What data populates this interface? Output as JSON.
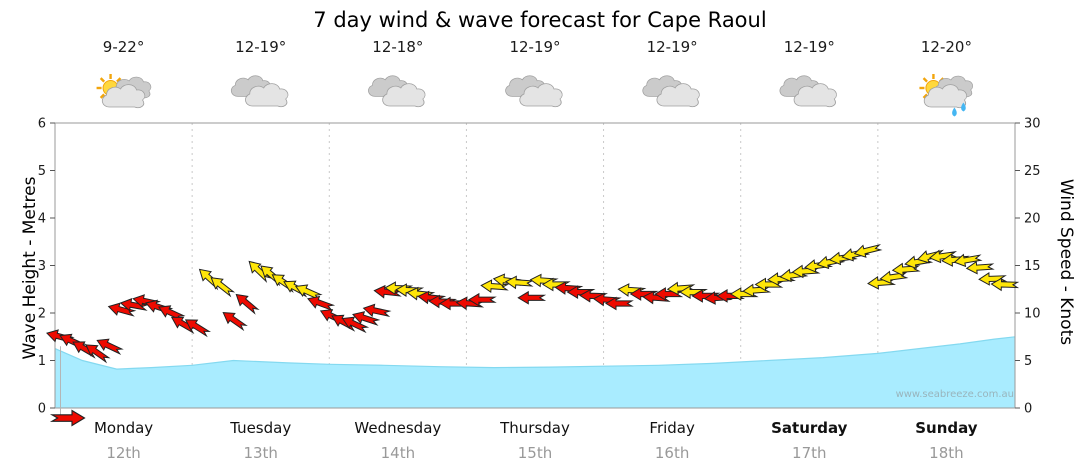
{
  "title": "7 day wind & wave forecast for Cape Raoul",
  "watermark": "www.seabreeze.com.au",
  "axes": {
    "left_label": "Wave Height - Metres",
    "right_label": "Wind Speed - Knots",
    "left_ticks": [
      0,
      1,
      2,
      3,
      4,
      5,
      6
    ],
    "right_ticks": [
      0,
      5,
      10,
      15,
      20,
      25,
      30
    ]
  },
  "days": [
    {
      "name": "Monday",
      "date": "12th",
      "temp": "9-22°",
      "icon": "sun-cloud",
      "bold": false
    },
    {
      "name": "Tuesday",
      "date": "13th",
      "temp": "12-19°",
      "icon": "clouds",
      "bold": false
    },
    {
      "name": "Wednesday",
      "date": "14th",
      "temp": "12-18°",
      "icon": "clouds",
      "bold": false
    },
    {
      "name": "Thursday",
      "date": "15th",
      "temp": "12-19°",
      "icon": "clouds",
      "bold": false
    },
    {
      "name": "Friday",
      "date": "16th",
      "temp": "12-19°",
      "icon": "clouds",
      "bold": false
    },
    {
      "name": "Saturday",
      "date": "17th",
      "temp": "12-19°",
      "icon": "clouds",
      "bold": true
    },
    {
      "name": "Sunday",
      "date": "18th",
      "temp": "12-20°",
      "icon": "sun-shower",
      "bold": true
    }
  ],
  "chart_data": {
    "type": "area",
    "subtype": "wind-wave-forecast (wave-height area + wind-speed arrows)",
    "categories": [
      "Monday 12th",
      "Tuesday 13th",
      "Wednesday 14th",
      "Thursday 15th",
      "Friday 16th",
      "Saturday 17th",
      "Sunday 18th"
    ],
    "ylim_wave": [
      0,
      6
    ],
    "ylim_wind": [
      0,
      30
    ],
    "colors": {
      "red": "#ee0a00",
      "yellow": "#ffe608",
      "wave": "#a9ecff",
      "wave_edge": "#84d9f0"
    },
    "wave_series": {
      "name": "Wave Height (m, left axis)",
      "x_days": [
        0,
        0.2,
        0.45,
        0.7,
        1.0,
        1.3,
        1.7,
        2.0,
        2.4,
        2.8,
        3.2,
        3.6,
        4.0,
        4.4,
        4.8,
        5.2,
        5.6,
        6.0,
        6.3,
        6.6,
        6.85,
        7.0
      ],
      "metres": [
        1.25,
        1.0,
        0.82,
        0.85,
        0.9,
        1.0,
        0.95,
        0.92,
        0.9,
        0.87,
        0.85,
        0.86,
        0.88,
        0.9,
        0.94,
        1.0,
        1.06,
        1.15,
        1.25,
        1.35,
        1.45,
        1.5
      ]
    },
    "arrow_format": [
      "day_offset",
      "knots",
      "color",
      "direction_deg_0_points_right"
    ],
    "wind_arrows": [
      [
        0.04,
        7.5,
        "red",
        195
      ],
      [
        0.13,
        7.0,
        "red",
        205
      ],
      [
        0.22,
        6.2,
        "red",
        210
      ],
      [
        0.31,
        5.8,
        "red",
        215
      ],
      [
        0.4,
        6.5,
        "red",
        205
      ],
      [
        0.49,
        10.3,
        "red",
        195
      ],
      [
        0.58,
        10.8,
        "red",
        190
      ],
      [
        0.67,
        11.2,
        "red",
        192
      ],
      [
        0.76,
        10.6,
        "red",
        198
      ],
      [
        0.85,
        10.0,
        "red",
        205
      ],
      [
        0.94,
        8.8,
        "red",
        210
      ],
      [
        1.04,
        8.5,
        "red",
        212
      ],
      [
        1.13,
        13.6,
        "yellow",
        222
      ],
      [
        1.22,
        12.8,
        "yellow",
        218
      ],
      [
        1.31,
        9.2,
        "red",
        215
      ],
      [
        1.4,
        11.0,
        "red",
        220
      ],
      [
        1.49,
        14.4,
        "yellow",
        224
      ],
      [
        1.58,
        14.0,
        "yellow",
        220
      ],
      [
        1.67,
        13.2,
        "yellow",
        214
      ],
      [
        1.76,
        12.6,
        "yellow",
        208
      ],
      [
        1.85,
        12.2,
        "yellow",
        204
      ],
      [
        1.94,
        11.0,
        "red",
        200
      ],
      [
        2.03,
        9.6,
        "red",
        205
      ],
      [
        2.11,
        9.0,
        "red",
        208
      ],
      [
        2.19,
        8.8,
        "red",
        205
      ],
      [
        2.27,
        9.4,
        "red",
        198
      ],
      [
        2.35,
        10.2,
        "red",
        192
      ],
      [
        2.43,
        12.2,
        "red",
        186
      ],
      [
        2.51,
        12.6,
        "yellow",
        182
      ],
      [
        2.59,
        12.4,
        "yellow",
        182
      ],
      [
        2.67,
        12.0,
        "yellow",
        186
      ],
      [
        2.75,
        11.6,
        "red",
        186
      ],
      [
        2.83,
        11.2,
        "red",
        182
      ],
      [
        2.91,
        11.0,
        "red",
        180
      ],
      [
        3.03,
        11.0,
        "red",
        184
      ],
      [
        3.12,
        11.4,
        "red",
        180
      ],
      [
        3.21,
        12.8,
        "yellow",
        184
      ],
      [
        3.3,
        13.4,
        "yellow",
        188
      ],
      [
        3.39,
        13.2,
        "yellow",
        184
      ],
      [
        3.48,
        11.6,
        "red",
        180
      ],
      [
        3.57,
        13.4,
        "yellow",
        184
      ],
      [
        3.66,
        13.0,
        "yellow",
        180
      ],
      [
        3.75,
        12.6,
        "red",
        184
      ],
      [
        3.84,
        12.2,
        "red",
        180
      ],
      [
        3.93,
        11.8,
        "red",
        182
      ],
      [
        4.03,
        11.4,
        "red",
        184
      ],
      [
        4.12,
        11.0,
        "red",
        180
      ],
      [
        4.21,
        12.4,
        "yellow",
        184
      ],
      [
        4.3,
        12.0,
        "red",
        180
      ],
      [
        4.39,
        11.6,
        "red",
        184
      ],
      [
        4.48,
        12.0,
        "red",
        180
      ],
      [
        4.57,
        12.6,
        "yellow",
        176
      ],
      [
        4.66,
        12.2,
        "yellow",
        180
      ],
      [
        4.75,
        11.8,
        "red",
        180
      ],
      [
        4.84,
        11.6,
        "red",
        176
      ],
      [
        4.93,
        11.8,
        "red",
        180
      ],
      [
        5.03,
        12.0,
        "yellow",
        180
      ],
      [
        5.12,
        12.4,
        "yellow",
        176
      ],
      [
        5.21,
        13.0,
        "yellow",
        180
      ],
      [
        5.3,
        13.6,
        "yellow",
        176
      ],
      [
        5.39,
        14.0,
        "yellow",
        172
      ],
      [
        5.48,
        14.4,
        "yellow",
        176
      ],
      [
        5.57,
        15.0,
        "yellow",
        172
      ],
      [
        5.66,
        15.4,
        "yellow",
        168
      ],
      [
        5.75,
        15.8,
        "yellow",
        172
      ],
      [
        5.84,
        16.2,
        "yellow",
        168
      ],
      [
        5.93,
        16.6,
        "yellow",
        166
      ],
      [
        6.03,
        13.2,
        "yellow",
        176
      ],
      [
        6.12,
        13.8,
        "yellow",
        172
      ],
      [
        6.21,
        14.6,
        "yellow",
        176
      ],
      [
        6.3,
        15.4,
        "yellow",
        170
      ],
      [
        6.39,
        16.0,
        "yellow",
        166
      ],
      [
        6.48,
        16.0,
        "yellow",
        172
      ],
      [
        6.57,
        15.6,
        "yellow",
        176
      ],
      [
        6.66,
        15.6,
        "yellow",
        170
      ],
      [
        6.75,
        14.8,
        "yellow",
        176
      ],
      [
        6.84,
        13.6,
        "yellow",
        178
      ],
      [
        6.93,
        13.0,
        "yellow",
        182
      ]
    ],
    "now_marker": {
      "day_offset": 0.04,
      "color": "red",
      "direction_deg": 0
    }
  }
}
